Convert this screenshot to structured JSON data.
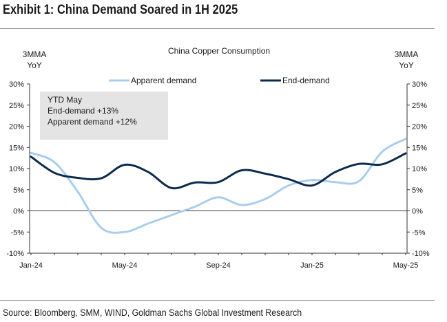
{
  "exhibit_title": "Exhibit 1: China Demand Soared in 1H 2025",
  "source": "Source: Bloomberg, SMM, WIND, Goldman Sachs Global Investment Research",
  "chart_data": {
    "type": "line",
    "title": "China Copper Consumption",
    "ylabel_left": [
      "3MMA",
      "YoY"
    ],
    "ylabel_right": [
      "3MMA",
      "YoY"
    ],
    "ylim": [
      -0.1,
      0.3
    ],
    "yticks": [
      -0.1,
      -0.05,
      0,
      0.05,
      0.1,
      0.15,
      0.2,
      0.25,
      0.3
    ],
    "ytick_labels": [
      "-10%",
      "-5%",
      "0%",
      "5%",
      "10%",
      "15%",
      "20%",
      "25%",
      "30%"
    ],
    "x": [
      "Jan-24",
      "Feb-24",
      "Mar-24",
      "Apr-24",
      "May-24",
      "Jun-24",
      "Jul-24",
      "Aug-24",
      "Sep-24",
      "Oct-24",
      "Nov-24",
      "Dec-24",
      "Jan-25",
      "Feb-25",
      "Mar-25",
      "Apr-25",
      "May-25"
    ],
    "xtick_labels": [
      "Jan-24",
      "May-24",
      "Sep-24",
      "Jan-25",
      "May-25"
    ],
    "xtick_indices": [
      0,
      4,
      8,
      12,
      16
    ],
    "grid": false,
    "legend_position": "top",
    "series": [
      {
        "name": "Apparent demand",
        "color": "#a9cdef",
        "values": [
          0.137,
          0.115,
          0.045,
          -0.04,
          -0.05,
          -0.03,
          -0.01,
          0.01,
          0.032,
          0.014,
          0.028,
          0.06,
          0.073,
          0.068,
          0.07,
          0.14,
          0.17
        ]
      },
      {
        "name": "End-demand",
        "color": "#0c2b4e",
        "values": [
          0.128,
          0.09,
          0.078,
          0.077,
          0.109,
          0.092,
          0.054,
          0.067,
          0.068,
          0.096,
          0.088,
          0.075,
          0.06,
          0.092,
          0.111,
          0.11,
          0.136
        ]
      }
    ],
    "annotation": [
      "YTD May",
      "End-demand +13%",
      "Apparent demand +12%"
    ]
  }
}
